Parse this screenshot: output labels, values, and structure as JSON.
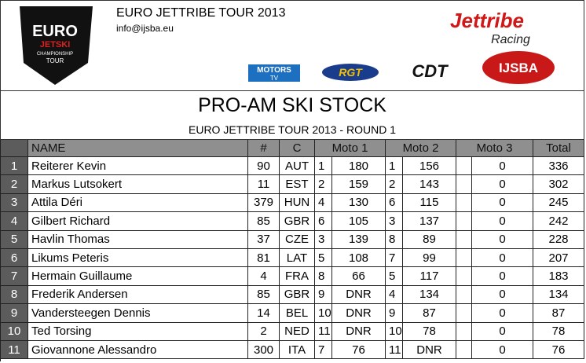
{
  "header": {
    "title": "EURO JETTRIBE TOUR 2013",
    "email": "info@ijsba.eu",
    "logos": {
      "shield": [
        "EURO",
        "JETSKI",
        "CHAMPIONSHIP",
        "TOUR"
      ],
      "jettribe": [
        "Jettribe",
        "Racing"
      ],
      "motors": [
        "MOTORS",
        "TV"
      ],
      "rgt": "RGT",
      "cdt": "CDT",
      "ijsba": "IJSBA"
    }
  },
  "title": "PRO-AM SKI STOCK",
  "subtitle": "EURO JETTRIBE TOUR 2013 - ROUND 1",
  "table": {
    "columns": [
      "NAME",
      "#",
      "C",
      "Moto 1",
      "Moto 2",
      "Moto 3",
      "Total"
    ],
    "rows": [
      [
        1,
        "Reiterer Kevin",
        90,
        "AUT",
        1,
        180,
        1,
        156,
        0,
        336
      ],
      [
        2,
        "Markus Lutsokert",
        11,
        "EST",
        2,
        159,
        2,
        143,
        0,
        302
      ],
      [
        3,
        "Attila Déri",
        379,
        "HUN",
        4,
        130,
        6,
        115,
        0,
        245
      ],
      [
        4,
        "Gilbert Richard",
        85,
        "GBR",
        6,
        105,
        3,
        137,
        0,
        242
      ],
      [
        5,
        "Havlin Thomas",
        37,
        "CZE",
        3,
        139,
        8,
        89,
        0,
        228
      ],
      [
        6,
        "Likums Peteris",
        81,
        "LAT",
        5,
        108,
        7,
        99,
        0,
        207
      ],
      [
        7,
        "Hermain Guillaume",
        4,
        "FRA",
        8,
        66,
        5,
        117,
        0,
        183
      ],
      [
        8,
        "Frederik Andersen",
        85,
        "GBR",
        9,
        "DNR",
        4,
        134,
        0,
        134
      ],
      [
        9,
        "Vandersteegen Dennis",
        14,
        "BEL",
        10,
        "DNR",
        9,
        87,
        0,
        87
      ],
      [
        10,
        "Ted Torsing",
        2,
        "NED",
        11,
        "DNR",
        10,
        78,
        0,
        78
      ],
      [
        11,
        "Giovannone Alessandro",
        300,
        "ITA",
        7,
        76,
        11,
        "DNR",
        0,
        76
      ]
    ]
  }
}
